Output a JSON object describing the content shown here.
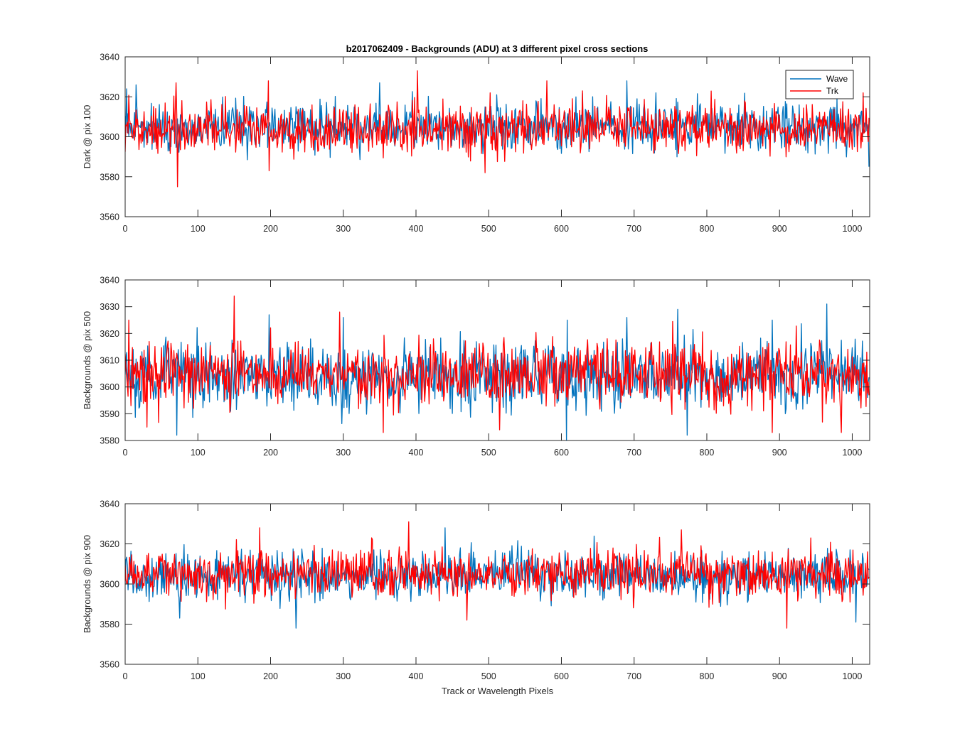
{
  "figure_title": "b2017062409 - Backgrounds (ADU) at 3 different pixel cross sections",
  "colors": {
    "wave": "#0072BD",
    "trk": "#FF0000",
    "axes": "#262626",
    "background": "#FFFFFF"
  },
  "legend": {
    "entries": [
      "Wave",
      "Trk"
    ],
    "placement": "top-right (first panel only)"
  },
  "chart_data": [
    {
      "type": "line",
      "title": "b2017062409 - Backgrounds (ADU) at 3 different pixel cross sections",
      "xlabel": "",
      "ylabel": "Dark @ pix 100",
      "xlim": [
        0,
        1024
      ],
      "ylim": [
        3560,
        3640
      ],
      "xticks": [
        "0",
        "100",
        "200",
        "300",
        "400",
        "500",
        "600",
        "700",
        "800",
        "900",
        "1000"
      ],
      "yticks": [
        "3560",
        "3580",
        "3600",
        "3620",
        "3640"
      ],
      "grid": false,
      "n_points": 1024,
      "legend_shown": true,
      "series": [
        {
          "name": "Wave",
          "color": "#0072BD",
          "seed": 11,
          "mean": 3605,
          "sd": 6.0,
          "min": 3584,
          "max": 3628,
          "spikes": [
            [
              2,
              3624
            ],
            [
              15,
              3626
            ],
            [
              350,
              3627
            ],
            [
              690,
              3628
            ],
            [
              730,
              3622
            ],
            [
              1023,
              3585
            ]
          ]
        },
        {
          "name": "Trk",
          "color": "#FF0000",
          "seed": 23,
          "mean": 3604,
          "sd": 6.0,
          "min": 3575,
          "max": 3633,
          "spikes": [
            [
              72,
              3575
            ],
            [
              70,
              3627
            ],
            [
              197,
              3628
            ],
            [
              198,
              3583
            ],
            [
              402,
              3633
            ],
            [
              495,
              3582
            ],
            [
              580,
              3628
            ],
            [
              1015,
              3622
            ]
          ]
        }
      ]
    },
    {
      "type": "line",
      "title": "",
      "xlabel": "",
      "ylabel": "Backgrounds @ pix 500",
      "xlim": [
        0,
        1024
      ],
      "ylim": [
        3580,
        3640
      ],
      "xticks": [
        "0",
        "100",
        "200",
        "300",
        "400",
        "500",
        "600",
        "700",
        "800",
        "900",
        "1000"
      ],
      "yticks": [
        "3580",
        "3590",
        "3600",
        "3610",
        "3620",
        "3630",
        "3640"
      ],
      "grid": false,
      "n_points": 1024,
      "legend_shown": false,
      "series": [
        {
          "name": "Wave",
          "color": "#0072BD",
          "seed": 37,
          "mean": 3604,
          "sd": 6.5,
          "min": 3580,
          "max": 3631,
          "spikes": [
            [
              198,
              3627
            ],
            [
              300,
              3626
            ],
            [
              607,
              3580
            ],
            [
              608,
              3625
            ],
            [
              690,
              3626
            ],
            [
              760,
              3629
            ],
            [
              773,
              3582
            ],
            [
              890,
              3625
            ],
            [
              965,
              3631
            ]
          ]
        },
        {
          "name": "Trk",
          "color": "#FF0000",
          "seed": 41,
          "mean": 3605,
          "sd": 6.0,
          "min": 3583,
          "max": 3634,
          "spikes": [
            [
              150,
              3634
            ],
            [
              30,
              3585
            ],
            [
              295,
              3628
            ],
            [
              355,
              3583
            ],
            [
              515,
              3584
            ],
            [
              890,
              3583
            ],
            [
              985,
              3583
            ],
            [
              5,
              3625
            ]
          ]
        }
      ]
    },
    {
      "type": "line",
      "title": "",
      "xlabel": "Track or Wavelength Pixels",
      "ylabel": "Backgrounds @ pix 900",
      "xlim": [
        0,
        1024
      ],
      "ylim": [
        3560,
        3640
      ],
      "xticks": [
        "0",
        "100",
        "200",
        "300",
        "400",
        "500",
        "600",
        "700",
        "800",
        "900",
        "1000"
      ],
      "yticks": [
        "3560",
        "3580",
        "3600",
        "3620",
        "3640"
      ],
      "grid": false,
      "n_points": 1024,
      "legend_shown": false,
      "series": [
        {
          "name": "Wave",
          "color": "#0072BD",
          "seed": 53,
          "mean": 3604,
          "sd": 6.0,
          "min": 3578,
          "max": 3628,
          "spikes": [
            [
              75,
              3583
            ],
            [
              235,
              3578
            ],
            [
              440,
              3628
            ],
            [
              1005,
              3581
            ]
          ]
        },
        {
          "name": "Trk",
          "color": "#FF0000",
          "seed": 67,
          "mean": 3605,
          "sd": 6.0,
          "min": 3578,
          "max": 3631,
          "spikes": [
            [
              185,
              3628
            ],
            [
              390,
              3631
            ],
            [
              765,
              3627
            ],
            [
              910,
              3578
            ],
            [
              470,
              3582
            ]
          ]
        }
      ]
    }
  ]
}
